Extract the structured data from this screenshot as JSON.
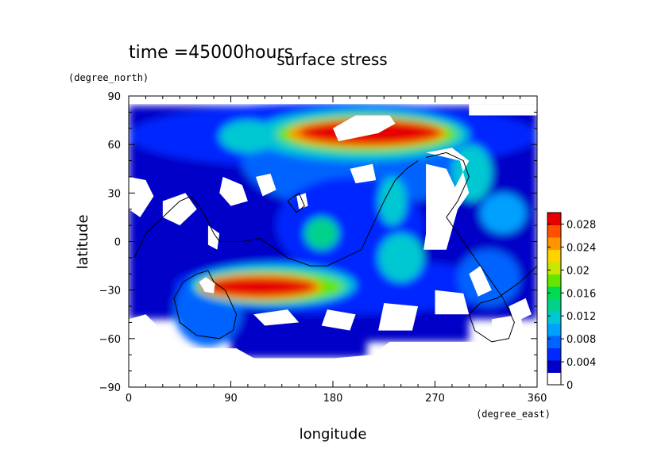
{
  "figure": {
    "time_label": "time =45000hours",
    "title": "surface stress"
  },
  "chart_data": {
    "type": "heatmap",
    "title": "surface stress",
    "subtitle": "time =45000hours",
    "xlabel": "longitude",
    "xunit": "(degree_east)",
    "ylabel": "latitude",
    "yunit": "(degree_north)",
    "xlim": [
      0,
      360
    ],
    "ylim": [
      -90,
      90
    ],
    "xticks": [
      0,
      90,
      180,
      270,
      360
    ],
    "yticks": [
      -90,
      -60,
      -30,
      0,
      30,
      60,
      90
    ],
    "colorbar": {
      "ticks": [
        "0",
        "0.004",
        "0.008",
        "0.012",
        "0.016",
        "0.02",
        "0.024",
        "0.028"
      ],
      "tick_values": [
        0,
        0.004,
        0.008,
        0.012,
        0.016,
        0.02,
        0.024,
        0.028
      ],
      "range": [
        0,
        0.03
      ],
      "colors": [
        "#ffffff",
        "#0000c8",
        "#0028ff",
        "#0064ff",
        "#00a0ff",
        "#00c8d2",
        "#00d28c",
        "#00dc50",
        "#64e600",
        "#c8e600",
        "#ffd200",
        "#ff9600",
        "#ff5000",
        "#e60000"
      ]
    },
    "features": [
      {
        "name": "north-polar-jet",
        "lon": [
          120,
          290
        ],
        "lat": [
          55,
          78
        ],
        "value": 0.028
      },
      {
        "name": "south-subtropical-jet",
        "lon": [
          60,
          190
        ],
        "lat": [
          -38,
          -18
        ],
        "value": 0.028
      },
      {
        "name": "north-calm-core",
        "lon": [
          180,
          235
        ],
        "lat": [
          62,
          78
        ],
        "value": 0
      },
      {
        "name": "south-calm-core",
        "lon": [
          62,
          78
        ],
        "lat": [
          -32,
          -22
        ],
        "value": 0
      }
    ],
    "grid": false
  }
}
